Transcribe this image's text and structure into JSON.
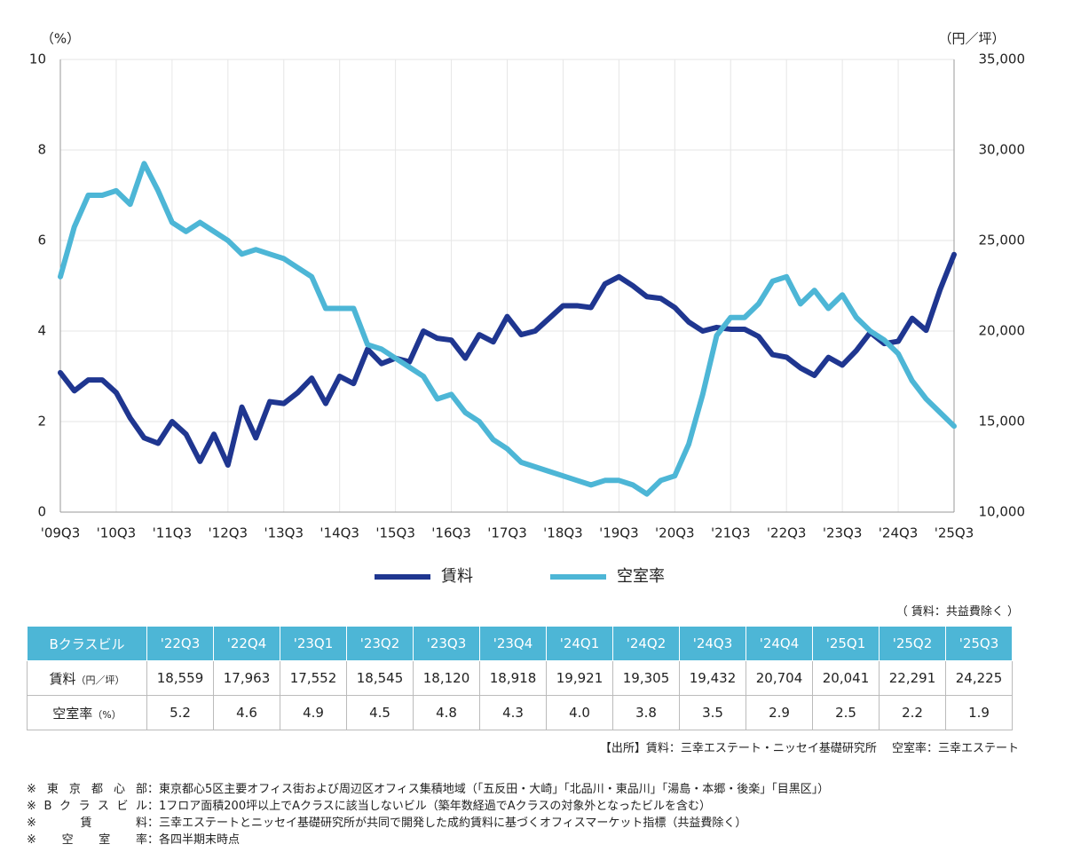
{
  "chart_data": {
    "type": "line",
    "y_unit": "（%）",
    "y2_unit": "（円／坪）",
    "categories": [
      "'09Q3",
      null,
      null,
      null,
      "'10Q3",
      null,
      null,
      null,
      "'11Q3",
      null,
      null,
      null,
      "'12Q3",
      null,
      null,
      null,
      "'13Q3",
      null,
      null,
      null,
      "'14Q3",
      null,
      null,
      null,
      "'15Q3",
      null,
      null,
      null,
      "'16Q3",
      null,
      null,
      null,
      "'17Q3",
      null,
      null,
      null,
      "'18Q3",
      null,
      null,
      null,
      "'19Q3",
      null,
      null,
      null,
      "'20Q3",
      null,
      null,
      null,
      "'21Q3",
      null,
      null,
      null,
      "'22Q3",
      null,
      null,
      null,
      "'23Q3",
      null,
      null,
      null,
      "'24Q3",
      null,
      null,
      null,
      "'25Q3"
    ],
    "series": [
      {
        "name": "賃料",
        "color": "#1f3690",
        "axis": "y2",
        "values": [
          17700,
          16700,
          17300,
          17300,
          16600,
          15200,
          14100,
          13800,
          15000,
          14300,
          12800,
          14300,
          12600,
          15800,
          14100,
          16100,
          16000,
          16600,
          17400,
          16000,
          17500,
          17100,
          19000,
          18200,
          18500,
          18300,
          20000,
          19600,
          19500,
          18500,
          19800,
          19400,
          20800,
          19800,
          20000,
          20700,
          21400,
          21400,
          21300,
          22600,
          23000,
          22500,
          21900,
          21800,
          21300,
          20500,
          20000,
          20200,
          20100,
          20100,
          19700,
          18700,
          18559,
          17963,
          17552,
          18545,
          18120,
          18918,
          19921,
          19305,
          19432,
          20704,
          20041,
          22291,
          24225
        ]
      },
      {
        "name": "空室率",
        "color": "#4db6d6",
        "axis": "y",
        "values": [
          5.2,
          6.3,
          7.0,
          7.0,
          7.1,
          6.8,
          7.7,
          7.1,
          6.4,
          6.2,
          6.4,
          6.2,
          6.0,
          5.7,
          5.8,
          5.7,
          5.6,
          5.4,
          5.2,
          4.5,
          4.5,
          4.5,
          3.7,
          3.6,
          3.4,
          3.2,
          3.0,
          2.5,
          2.6,
          2.2,
          2.0,
          1.6,
          1.4,
          1.1,
          1.0,
          0.9,
          0.8,
          0.7,
          0.6,
          0.7,
          0.7,
          0.6,
          0.4,
          0.7,
          0.8,
          1.5,
          2.6,
          3.9,
          4.3,
          4.3,
          4.6,
          5.1,
          5.2,
          4.6,
          4.9,
          4.5,
          4.8,
          4.3,
          4.0,
          3.8,
          3.5,
          2.9,
          2.5,
          2.2,
          1.9
        ]
      }
    ],
    "ylim": [
      0,
      10
    ],
    "yticks": [
      0,
      2,
      4,
      6,
      8,
      10
    ],
    "y2lim": [
      10000,
      35000
    ],
    "y2ticks": [
      {
        "value": 10000,
        "label": "10,000"
      },
      {
        "value": 15000,
        "label": "15,000"
      },
      {
        "value": 20000,
        "label": "20,000"
      },
      {
        "value": 25000,
        "label": "25,000"
      },
      {
        "value": 30000,
        "label": "30,000"
      },
      {
        "value": 35000,
        "label": "35,000"
      }
    ],
    "grid": true
  },
  "table_note": "（ 賃料：共益費除く ）",
  "table": {
    "header": [
      "Bクラスビル",
      "'22Q3",
      "'22Q4",
      "'23Q1",
      "'23Q2",
      "'23Q3",
      "'23Q4",
      "'24Q1",
      "'24Q2",
      "'24Q3",
      "'24Q4",
      "'25Q1",
      "'25Q2",
      "'25Q3"
    ],
    "rows": [
      {
        "label": "賃料",
        "unit": "（円／坪）",
        "values": [
          "18,559",
          "17,963",
          "17,552",
          "18,545",
          "18,120",
          "18,918",
          "19,921",
          "19,305",
          "19,432",
          "20,704",
          "20,041",
          "22,291",
          "24,225"
        ]
      },
      {
        "label": "空室率",
        "unit": "（%）",
        "values": [
          "5.2",
          "4.6",
          "4.9",
          "4.5",
          "4.8",
          "4.3",
          "4.0",
          "3.8",
          "3.5",
          "2.9",
          "2.5",
          "2.2",
          "1.9"
        ]
      }
    ]
  },
  "source": "【出所】賃料：三幸エステート・ニッセイ基礎研究所　 空室率：三幸エステート",
  "notes": [
    {
      "label": "※東京都心部",
      "text": "：東京都心5区主要オフィス街および周辺区オフィス集積地域（「五反田・大崎」「北品川・東品川」「湯島・本郷・後楽」「目黒区」）"
    },
    {
      "label": "※Bクラスビル",
      "text": "：1フロア面積200坪以上でAクラスに該当しないビル（築年数経過でAクラスの対象外となったビルを含む）"
    },
    {
      "label": "※賃料",
      "text": "：三幸エステートとニッセイ基礎研究所が共同で開発した成約賃料に基づくオフィスマーケット指標（共益費除く）"
    },
    {
      "label": "※空室率",
      "text": "：各四半期末時点"
    }
  ]
}
